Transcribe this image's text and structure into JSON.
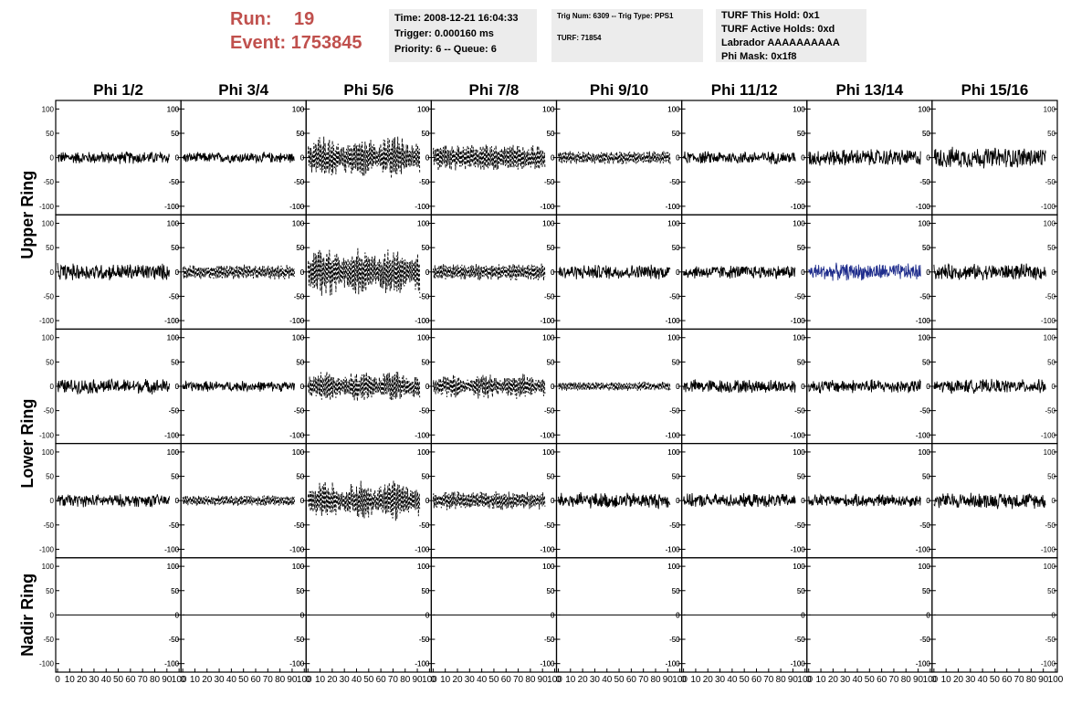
{
  "header": {
    "run_label": "Run:",
    "run_value": "19",
    "event_label": "Event:",
    "event_value": "1753845",
    "info1": [
      "Time: 2008-12-21 16:04:33",
      "Trigger: 0.000160 ms",
      "Priority: 6 -- Queue: 6"
    ],
    "info2": [
      "Trig Num: 6309 -- Trig Type: PPS1",
      "TURF: 71854"
    ],
    "info3": [
      "TURF This Hold: 0x1",
      "TURF Active Holds: 0xd",
      "Labrador AAAAAAAAAA",
      "Phi Mask: 0x1f8"
    ]
  },
  "chart_data": {
    "type": "line",
    "columns": [
      "Phi 1/2",
      "Phi 3/4",
      "Phi 5/6",
      "Phi 7/8",
      "Phi 9/10",
      "Phi 11/12",
      "Phi 13/14",
      "Phi 15/16"
    ],
    "ring_labels": [
      {
        "label": "Upper Ring",
        "rows": [
          0,
          1
        ]
      },
      {
        "label": "Lower Ring",
        "rows": [
          2,
          3
        ]
      },
      {
        "label": "Nadir Ring",
        "rows": [
          4
        ]
      }
    ],
    "ylim": [
      -110,
      110
    ],
    "yticks": [
      100,
      50,
      0,
      -50,
      -100
    ],
    "xlim": [
      0,
      100
    ],
    "xticks": [
      0,
      10,
      20,
      30,
      40,
      50,
      60,
      70,
      80,
      90,
      100
    ],
    "xtick_labels": [
      "0",
      "10",
      "20",
      "30",
      "40",
      "50",
      "60",
      "70",
      "80",
      "90",
      "100"
    ],
    "trace_end": 92,
    "colors": {
      "normal": "#000000",
      "highlight": "#1f2d8c"
    },
    "panels": [
      [
        {
          "amp": 12,
          "style": "solid"
        },
        {
          "amp": 10,
          "style": "solid"
        },
        {
          "amp": 48,
          "style": "dashed",
          "burst": true
        },
        {
          "amp": 28,
          "style": "dashed"
        },
        {
          "amp": 14,
          "style": "dashed"
        },
        {
          "amp": 12,
          "style": "solid"
        },
        {
          "amp": 16,
          "style": "solid"
        },
        {
          "amp": 20,
          "style": "solid"
        }
      ],
      [
        {
          "amp": 16,
          "style": "solid"
        },
        {
          "amp": 16,
          "style": "dashed"
        },
        {
          "amp": 55,
          "style": "dashed",
          "burst": true
        },
        {
          "amp": 18,
          "style": "dashed"
        },
        {
          "amp": 14,
          "style": "solid"
        },
        {
          "amp": 13,
          "style": "solid"
        },
        {
          "amp": 16,
          "style": "solid",
          "highlight": true
        },
        {
          "amp": 15,
          "style": "solid"
        }
      ],
      [
        {
          "amp": 14,
          "style": "solid"
        },
        {
          "amp": 10,
          "style": "solid"
        },
        {
          "amp": 34,
          "style": "dashed",
          "burst": true
        },
        {
          "amp": 28,
          "style": "dashed",
          "burst": true
        },
        {
          "amp": 10,
          "style": "dashed"
        },
        {
          "amp": 13,
          "style": "solid"
        },
        {
          "amp": 13,
          "style": "solid"
        },
        {
          "amp": 13,
          "style": "solid"
        }
      ],
      [
        {
          "amp": 12,
          "style": "solid"
        },
        {
          "amp": 12,
          "style": "dashed"
        },
        {
          "amp": 42,
          "style": "dashed",
          "burst": true
        },
        {
          "amp": 20,
          "style": "dashed"
        },
        {
          "amp": 15,
          "style": "solid"
        },
        {
          "amp": 13,
          "style": "solid"
        },
        {
          "amp": 12,
          "style": "solid"
        },
        {
          "amp": 15,
          "style": "solid"
        }
      ],
      [
        {
          "amp": 0,
          "style": "solid"
        },
        {
          "amp": 0,
          "style": "solid"
        },
        {
          "amp": 0,
          "style": "solid"
        },
        {
          "amp": 0,
          "style": "solid"
        },
        {
          "amp": 0,
          "style": "solid"
        },
        {
          "amp": 0,
          "style": "solid"
        },
        {
          "amp": 0,
          "style": "solid"
        },
        {
          "amp": 0,
          "style": "solid"
        }
      ]
    ]
  }
}
